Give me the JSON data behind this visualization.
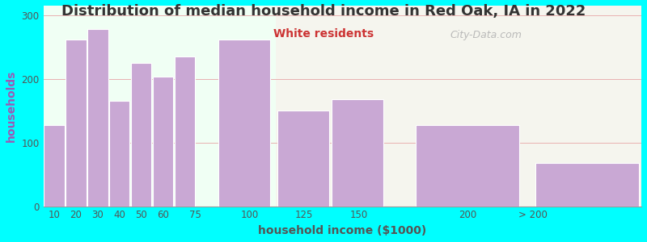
{
  "title": "Distribution of median household income in Red Oak, IA in 2022",
  "subtitle": "White residents",
  "xlabel": "household income ($1000)",
  "ylabel": "households",
  "background_color": "#00ffff",
  "plot_bg_color_left": "#f0fff4",
  "plot_bg_color_right": "#f5f5ee",
  "bar_color": "#c9a8d4",
  "bar_edge_color": "#ffffff",
  "bar_left_edges": [
    5,
    15,
    25,
    35,
    45,
    55,
    65,
    85,
    112,
    137,
    175,
    230
  ],
  "bar_widths": [
    10,
    10,
    10,
    10,
    10,
    10,
    10,
    25,
    25,
    25,
    50,
    50
  ],
  "values": [
    128,
    262,
    278,
    165,
    225,
    203,
    235,
    262,
    150,
    168,
    128,
    68
  ],
  "xtick_positions": [
    10,
    20,
    30,
    40,
    50,
    60,
    75,
    100,
    125,
    150,
    200,
    230
  ],
  "xtick_labels": [
    "10",
    "20",
    "30",
    "40",
    "50",
    "60",
    "75",
    "100",
    "125",
    "150",
    "200",
    "> 200"
  ],
  "xlim": [
    5,
    280
  ],
  "ylim": [
    0,
    315
  ],
  "yticks": [
    0,
    100,
    200,
    300
  ],
  "title_fontsize": 13,
  "subtitle_fontsize": 10,
  "subtitle_color": "#cc3333",
  "axis_label_fontsize": 10,
  "tick_fontsize": 8.5,
  "ylabel_color": "#9b59b6",
  "title_color": "#333333",
  "watermark_text": "City-Data.com",
  "watermark_color": "#b0b0b0",
  "left_bg_end_x": 112,
  "grid_color": "#e8b0b0",
  "spine_color": "#999999"
}
